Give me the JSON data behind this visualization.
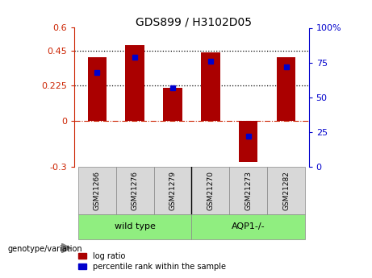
{
  "title": "GDS899 / H3102D05",
  "samples": [
    "GSM21266",
    "GSM21276",
    "GSM21279",
    "GSM21270",
    "GSM21273",
    "GSM21282"
  ],
  "log_ratio": [
    0.41,
    0.49,
    0.21,
    0.44,
    -0.27,
    0.41
  ],
  "percentile_rank": [
    68,
    79,
    57,
    76,
    22,
    72
  ],
  "bar_color": "#aa0000",
  "dot_color": "#0000cc",
  "ylim_left": [
    -0.3,
    0.6
  ],
  "ylim_right": [
    0,
    100
  ],
  "yticks_left": [
    -0.3,
    0,
    0.225,
    0.45,
    0.6
  ],
  "ytick_labels_left": [
    "-0.3",
    "0",
    "0.225",
    "0.45",
    "0.6"
  ],
  "yticks_right": [
    0,
    25,
    50,
    75,
    100
  ],
  "ytick_labels_right": [
    "0",
    "25",
    "50",
    "75",
    "100%"
  ],
  "hlines": [
    0.225,
    0.45
  ],
  "genotype_label": "genotype/variation",
  "group_labels": [
    "wild type",
    "AQP1-/-"
  ],
  "group_colors": [
    "#90ee80",
    "#90ee80"
  ],
  "bar_width": 0.5,
  "left_color": "#cc2200",
  "right_color": "#0000cc"
}
